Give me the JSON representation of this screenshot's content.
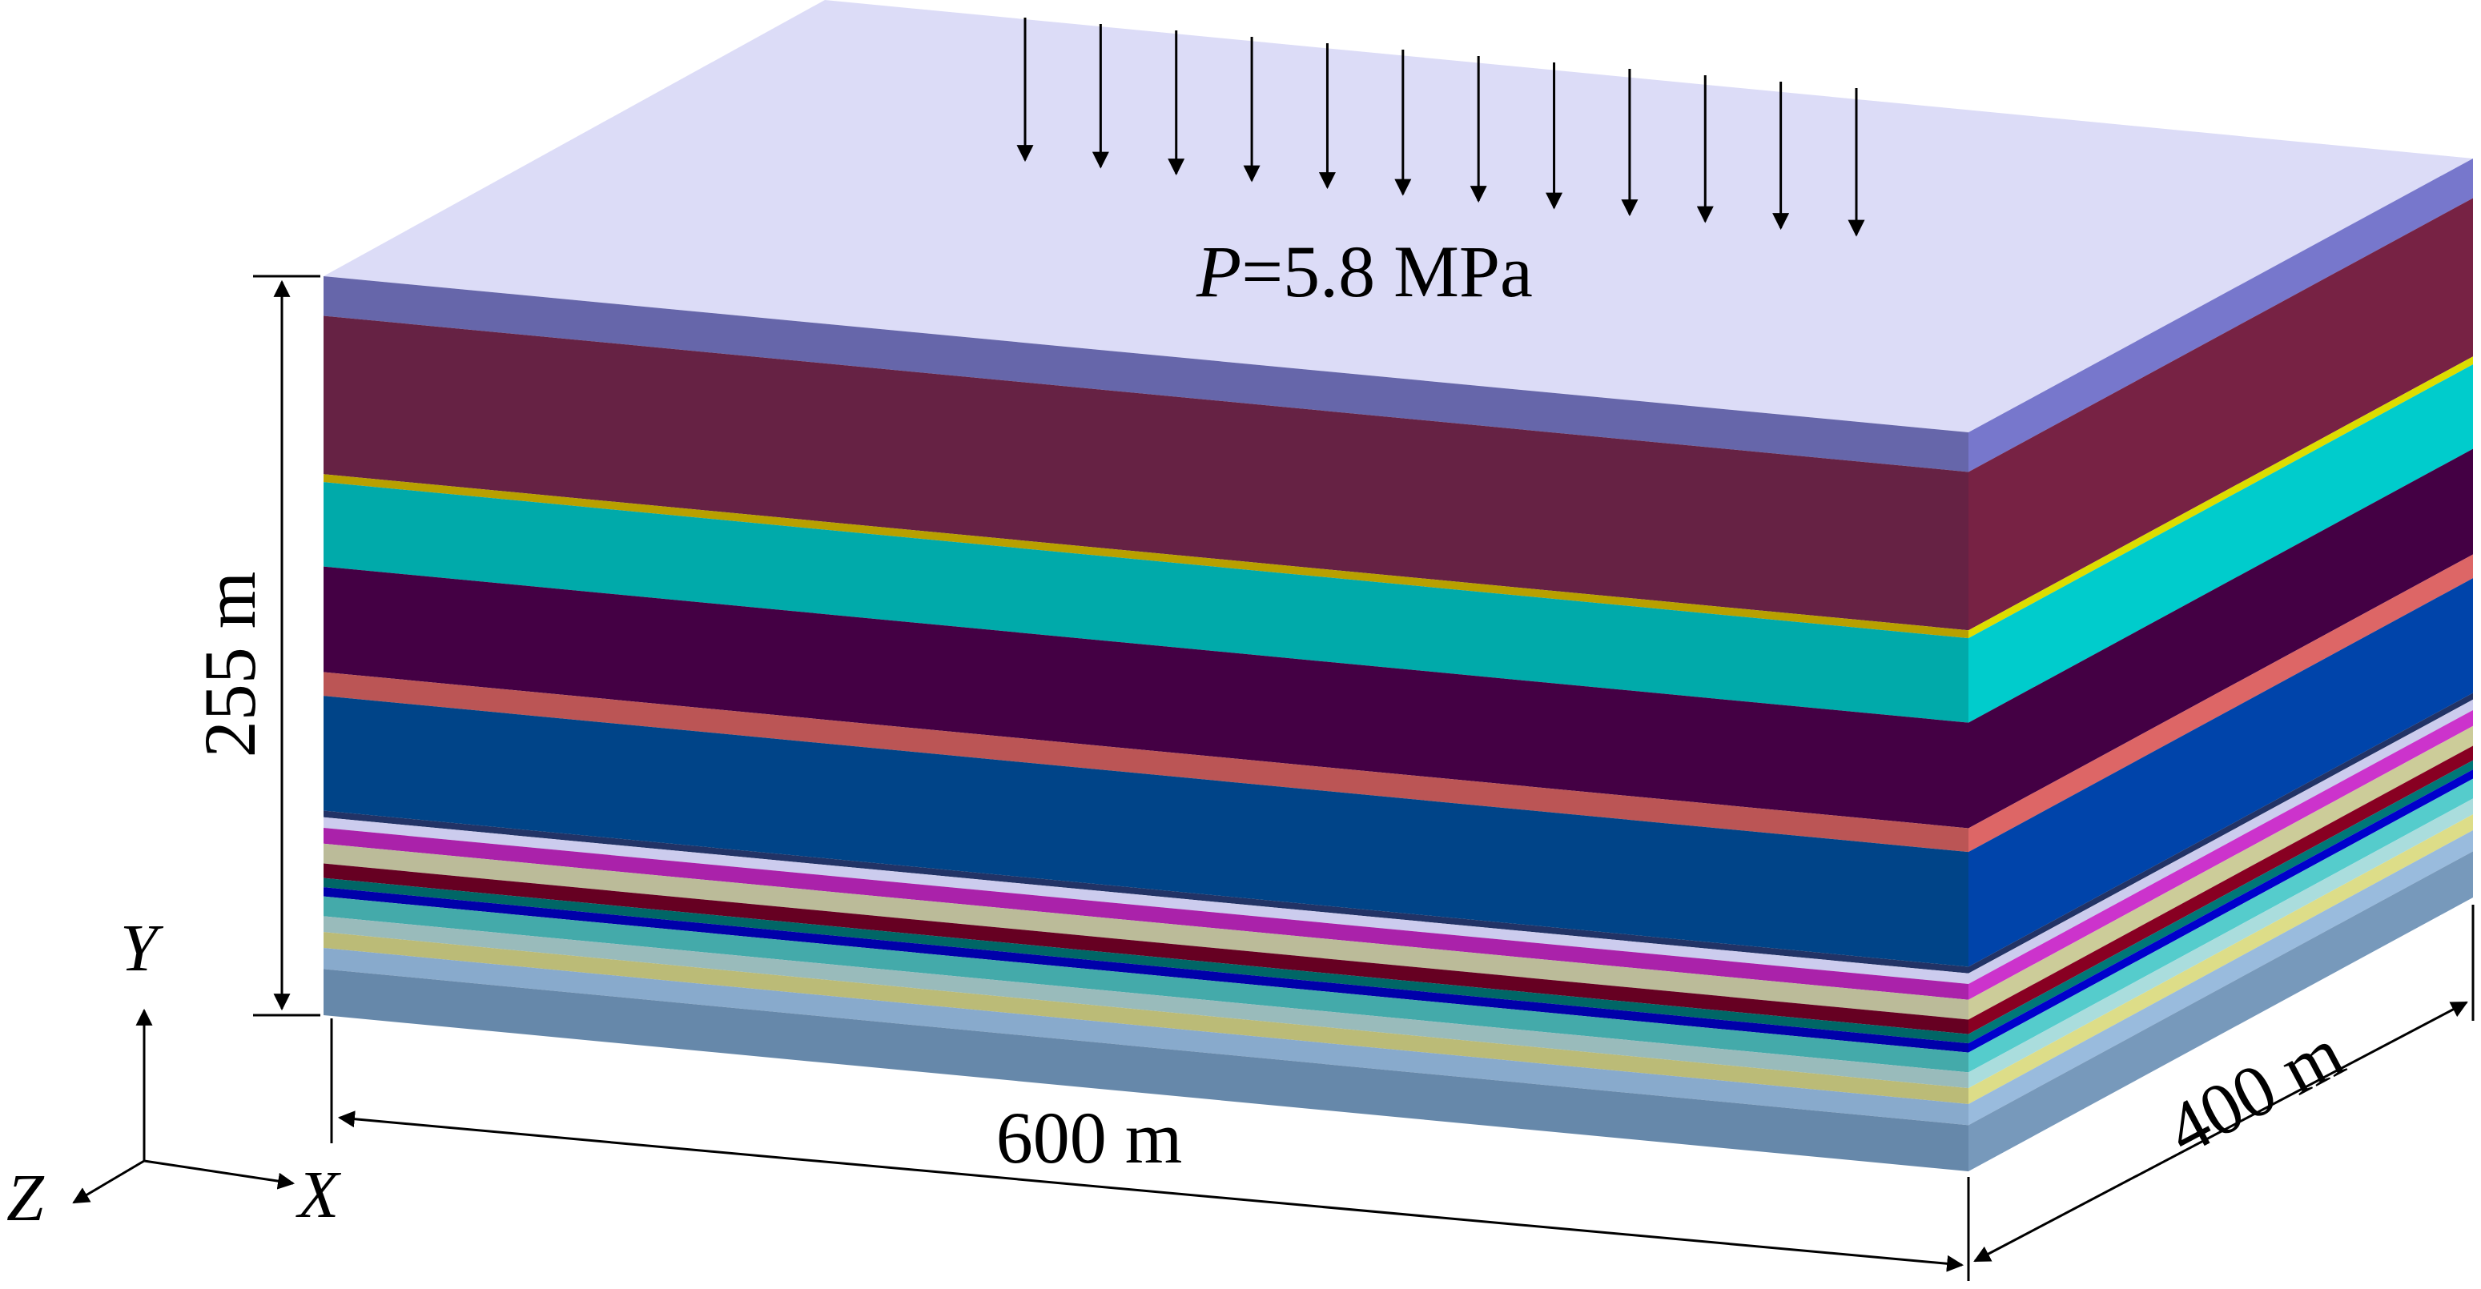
{
  "load": {
    "symbol": "P",
    "value": "=5.8 MPa",
    "arrow_count": 12
  },
  "dimensions": {
    "height": "255 m",
    "length": "600 m",
    "depth": "400 m"
  },
  "axes": {
    "y": "Y",
    "z": "Z",
    "x": "X"
  },
  "colors": {
    "top_face": "#dcdcf7",
    "layers_front_top_to_bottom": [
      "#6666aa",
      "#662244",
      "#b8a000",
      "#00aaaa",
      "#440044",
      "#bb5555",
      "#004488",
      "#223366",
      "#ccccee",
      "#aa22aa",
      "#bbbb99",
      "#660022",
      "#006666",
      "#0000aa",
      "#44aaaa",
      "#99bbbb",
      "#bbbb77",
      "#88aacc",
      "#6688aa"
    ],
    "layers_side_top_to_bottom": [
      "#7777cc",
      "#772244",
      "#dddd00",
      "#00cccc",
      "#440044",
      "#dd6666",
      "#0044aa",
      "#223366",
      "#ccccee",
      "#cc33cc",
      "#cccc99",
      "#880022",
      "#007777",
      "#0000cc",
      "#55cccc",
      "#aadddd",
      "#dddd88",
      "#99bbdd",
      "#7799bb"
    ]
  }
}
